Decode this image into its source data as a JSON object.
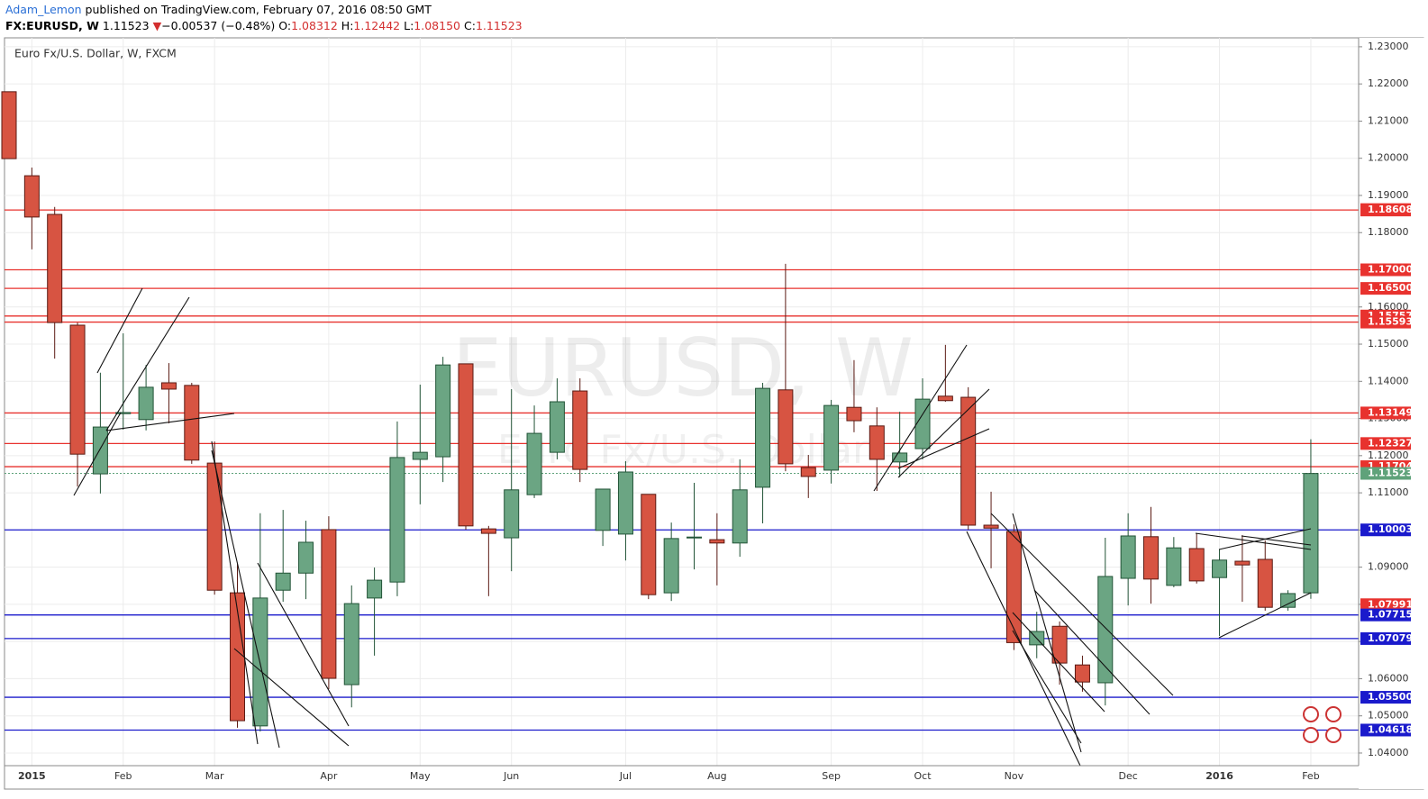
{
  "header": {
    "author": "Adam_Lemon",
    "published": "published on TradingView.com, February 07, 2016 08:50 GMT",
    "symbol": "FX:EURUSD, W",
    "last": "1.11523",
    "arrow": "▼",
    "change": "−0.00537 (−0.48%)",
    "o_label": "O:",
    "o": "1.08312",
    "h_label": "H:",
    "h": "1.12442",
    "l_label": "L:",
    "l": "1.08150",
    "c_label": "C:",
    "c": "1.11523"
  },
  "chart_data": {
    "type": "candlestick",
    "title": "Euro Fx/U.S. Dollar, W, FXCM",
    "watermark": "EURUSD, W",
    "watermark_sub": "Euro Fx/U.S. Dollar",
    "up_color": "#6ba583",
    "down_color": "#d75442",
    "up_border": "#225437",
    "down_border": "#5b1a13",
    "grid": true,
    "ylim": [
      1.0366,
      1.2324
    ],
    "yticks": [
      {
        "value": 1.04,
        "label": "1.04000"
      },
      {
        "value": 1.05,
        "label": "1.05000"
      },
      {
        "value": 1.06,
        "label": "1.06000"
      },
      {
        "value": 1.07,
        "label": "1.07000"
      },
      {
        "value": 1.08,
        "label": "1.08000"
      },
      {
        "value": 1.09,
        "label": "1.09000"
      },
      {
        "value": 1.1,
        "label": "1.10000"
      },
      {
        "value": 1.11,
        "label": "1.11000"
      },
      {
        "value": 1.12,
        "label": "1.12000"
      },
      {
        "value": 1.13,
        "label": "1.13000"
      },
      {
        "value": 1.14,
        "label": "1.14000"
      },
      {
        "value": 1.15,
        "label": "1.15000"
      },
      {
        "value": 1.16,
        "label": "1.16000"
      },
      {
        "value": 1.17,
        "label": "1.17000"
      },
      {
        "value": 1.18,
        "label": "1.18000"
      },
      {
        "value": 1.19,
        "label": "1.19000"
      },
      {
        "value": 1.2,
        "label": "1.20000"
      },
      {
        "value": 1.21,
        "label": "1.21000"
      },
      {
        "value": 1.22,
        "label": "1.22000"
      },
      {
        "value": 1.23,
        "label": "1.23000"
      }
    ],
    "levels": [
      {
        "value": 1.1862,
        "label": "1.18620",
        "color": "#e8322e",
        "line": false
      },
      {
        "value": 1.18608,
        "label": "1.18608",
        "color": "#e8322e",
        "line": true
      },
      {
        "value": 1.17,
        "label": "1.17000",
        "color": "#e8322e",
        "line": true
      },
      {
        "value": 1.165,
        "label": "1.16500",
        "color": "#e8322e",
        "line": true
      },
      {
        "value": 1.15757,
        "label": "1.15757",
        "color": "#e8322e",
        "line": true
      },
      {
        "value": 1.15593,
        "label": "1.15593",
        "color": "#e8322e",
        "line": true
      },
      {
        "value": 1.13149,
        "label": "1.13149",
        "color": "#e8322e",
        "line": true
      },
      {
        "value": 1.12327,
        "label": "1.12327",
        "color": "#e8322e",
        "line": true
      },
      {
        "value": 1.11704,
        "label": "1.11704",
        "color": "#e8322e",
        "line": true
      },
      {
        "value": 1.11523,
        "label": "1.11523",
        "color": "#5fa27a",
        "line": true,
        "dotted": true
      },
      {
        "value": 1.10003,
        "label": "1.10003",
        "color": "#1a1acc",
        "line": true
      },
      {
        "value": 1.07991,
        "label": "1.07991",
        "color": "#e8322e",
        "line": false
      },
      {
        "value": 1.07715,
        "label": "1.07715",
        "color": "#1a1acc",
        "line": true
      },
      {
        "value": 1.07079,
        "label": "1.07079",
        "color": "#1a1acc",
        "line": true
      },
      {
        "value": 1.055,
        "label": "1.05500",
        "color": "#1a1acc",
        "line": true
      },
      {
        "value": 1.04618,
        "label": "1.04618",
        "color": "#1a1acc",
        "line": true
      }
    ],
    "categories": [
      null,
      "2015",
      null,
      null,
      null,
      "Feb",
      null,
      null,
      null,
      "Mar",
      null,
      null,
      null,
      null,
      "Apr",
      null,
      null,
      null,
      "May",
      null,
      null,
      null,
      "Jun",
      null,
      null,
      null,
      null,
      "Jul",
      null,
      null,
      null,
      "Aug",
      null,
      null,
      null,
      null,
      "Sep",
      null,
      null,
      null,
      "Oct",
      null,
      null,
      null,
      "Nov",
      null,
      null,
      null,
      null,
      "Dec",
      null,
      null,
      null,
      "2016",
      null,
      null,
      null,
      "Feb"
    ],
    "ohlc": [
      [
        1.2179,
        1.2179,
        1.1999,
        1.1999
      ],
      [
        1.1953,
        1.1975,
        1.1755,
        1.1842
      ],
      [
        1.1849,
        1.1869,
        1.1461,
        1.1558
      ],
      [
        1.1551,
        1.1558,
        1.1117,
        1.1204
      ],
      [
        1.1151,
        1.1423,
        1.1098,
        1.1277
      ],
      [
        1.1313,
        1.1529,
        1.127,
        1.1316
      ],
      [
        1.1297,
        1.1444,
        1.1268,
        1.1384
      ],
      [
        1.1396,
        1.1449,
        1.1287,
        1.1379
      ],
      [
        1.1389,
        1.1396,
        1.1178,
        1.1188
      ],
      [
        1.118,
        1.1238,
        1.0826,
        1.0838
      ],
      [
        1.0831,
        1.0911,
        1.0468,
        1.0487
      ],
      [
        1.0473,
        1.1045,
        1.0458,
        1.0817
      ],
      [
        1.0838,
        1.1054,
        1.0807,
        1.0884
      ],
      [
        1.0884,
        1.1025,
        1.0814,
        1.0967
      ],
      [
        1.1001,
        1.1037,
        1.0572,
        1.0601
      ],
      [
        1.0584,
        1.0851,
        1.0523,
        1.0802
      ],
      [
        1.0817,
        1.0899,
        1.0662,
        1.0865
      ],
      [
        1.086,
        1.1292,
        1.0822,
        1.1195
      ],
      [
        1.119,
        1.1391,
        1.1069,
        1.1209
      ],
      [
        1.1197,
        1.1466,
        1.1129,
        1.1444
      ],
      [
        1.1447,
        1.1447,
        1.1001,
        1.1011
      ],
      [
        1.1003,
        1.1011,
        1.0822,
        1.0991
      ],
      [
        1.0979,
        1.1379,
        1.0889,
        1.1108
      ],
      [
        1.1095,
        1.1335,
        1.1086,
        1.126
      ],
      [
        1.1209,
        1.1408,
        1.119,
        1.1345
      ],
      [
        1.1374,
        1.1408,
        1.1129,
        1.1163
      ],
      [
        1.0999,
        1.111,
        1.0957,
        1.111
      ],
      [
        1.0989,
        1.1185,
        1.0918,
        1.1156
      ],
      [
        1.1096,
        1.1096,
        1.0814,
        1.0826
      ],
      [
        1.0831,
        1.102,
        1.0809,
        1.0977
      ],
      [
        1.0979,
        1.1127,
        1.0894,
        1.0981
      ],
      [
        1.0974,
        1.1045,
        1.0851,
        1.0965
      ],
      [
        1.0965,
        1.119,
        1.0928,
        1.1108
      ],
      [
        1.1115,
        1.1396,
        1.1018,
        1.1381
      ],
      [
        1.1377,
        1.1716,
        1.1158,
        1.1178
      ],
      [
        1.1168,
        1.1202,
        1.1086,
        1.1144
      ],
      [
        1.1161,
        1.135,
        1.1125,
        1.1335
      ],
      [
        1.133,
        1.1457,
        1.1263,
        1.1294
      ],
      [
        1.128,
        1.133,
        1.1105,
        1.119
      ],
      [
        1.1183,
        1.1318,
        1.1142,
        1.1207
      ],
      [
        1.1219,
        1.1408,
        1.119,
        1.1352
      ],
      [
        1.136,
        1.1498,
        1.1345,
        1.1348
      ],
      [
        1.1357,
        1.1384,
        1.1001,
        1.1013
      ],
      [
        1.1013,
        1.1103,
        1.0897,
        1.1005
      ],
      [
        1.0996,
        1.1015,
        1.0677,
        1.0697
      ],
      [
        1.0691,
        1.078,
        1.0655,
        1.0727
      ],
      [
        1.0741,
        1.0754,
        1.0584,
        1.0642
      ],
      [
        1.0637,
        1.0662,
        1.0565,
        1.0591
      ],
      [
        1.0589,
        1.0979,
        1.0528,
        1.0875
      ],
      [
        1.087,
        1.1045,
        1.0797,
        1.0984
      ],
      [
        1.0982,
        1.1062,
        1.0802,
        1.0868
      ],
      [
        1.0851,
        1.0981,
        1.0846,
        1.0952
      ],
      [
        1.095,
        1.0991,
        1.0856,
        1.0863
      ],
      [
        1.0872,
        1.0948,
        1.0715,
        1.0919
      ],
      [
        1.0916,
        1.0986,
        1.0807,
        1.0906
      ],
      [
        1.0921,
        1.0972,
        1.0783,
        1.0792
      ],
      [
        1.0792,
        1.0838,
        1.0783,
        1.0829
      ],
      [
        1.0831,
        1.1244,
        1.0815,
        1.1152
      ]
    ]
  }
}
